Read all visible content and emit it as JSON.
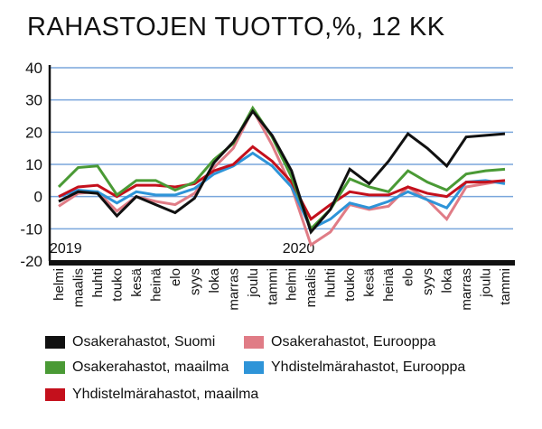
{
  "chart_data": {
    "type": "line",
    "title": "RAHASTOJEN TUOTTO,%, 12 KK",
    "xlabel": "",
    "ylabel": "",
    "ylim": [
      -20,
      40
    ],
    "yticks": [
      40,
      30,
      20,
      10,
      0,
      -10,
      -20
    ],
    "grid": true,
    "legend_placement": "bottom",
    "year_labels": [
      "2019",
      "2020"
    ],
    "categories": [
      "helmi",
      "maalis",
      "huhti",
      "touko",
      "kesä",
      "heinä",
      "elo",
      "syys",
      "loka",
      "marras",
      "joulu",
      "tammi",
      "helmi",
      "maalis",
      "huhti",
      "touko",
      "kesä",
      "heinä",
      "elo",
      "syys",
      "loka",
      "marras",
      "joulu",
      "tammi"
    ],
    "series": [
      {
        "name": "Osakerahastot, Suomi",
        "color": "#111111",
        "values": [
          -1.5,
          1.5,
          1,
          -6,
          0,
          -2.5,
          -5,
          -0.5,
          10.5,
          17,
          26.5,
          19,
          8,
          -11,
          -4,
          8.5,
          4,
          11,
          19.5,
          15,
          9.5,
          18.5,
          19,
          19.5
        ]
      },
      {
        "name": "Osakerahastot, Eurooppa",
        "color": "#e07c86",
        "values": [
          -3,
          1,
          1.5,
          -4.5,
          0,
          -1.5,
          -2.5,
          1,
          9,
          15,
          27,
          16,
          3,
          -15,
          -11,
          -2.5,
          -4,
          -3,
          3,
          -1,
          -7,
          3,
          4,
          5
        ]
      },
      {
        "name": "Osakerahastot, maailma",
        "color": "#4a9a35",
        "values": [
          3,
          9,
          9.5,
          0.5,
          5,
          5,
          2,
          4.5,
          11.5,
          16.5,
          27.5,
          18.5,
          6,
          -10,
          -4,
          5.5,
          3,
          1.5,
          8,
          4.5,
          2,
          7,
          8,
          8.5
        ]
      },
      {
        "name": "Yhdistelmärahastot, Eurooppa",
        "color": "#2e94d8",
        "values": [
          0,
          2,
          1.5,
          -2,
          1.5,
          0.5,
          0.5,
          2.5,
          7,
          9.5,
          13.5,
          9.5,
          3,
          -10,
          -7,
          -2,
          -3.5,
          -1.5,
          1.5,
          -1,
          -3.5,
          4.5,
          5,
          4
        ]
      },
      {
        "name": "Yhdistelmärahastot, maailma",
        "color": "#c4101c",
        "values": [
          0,
          3,
          3.5,
          0,
          3.5,
          3.5,
          3,
          4,
          8,
          10,
          15.5,
          11,
          4.5,
          -7,
          -2.5,
          1.5,
          0.5,
          0.5,
          3,
          1,
          0,
          4.5,
          4.5,
          5
        ]
      }
    ]
  }
}
